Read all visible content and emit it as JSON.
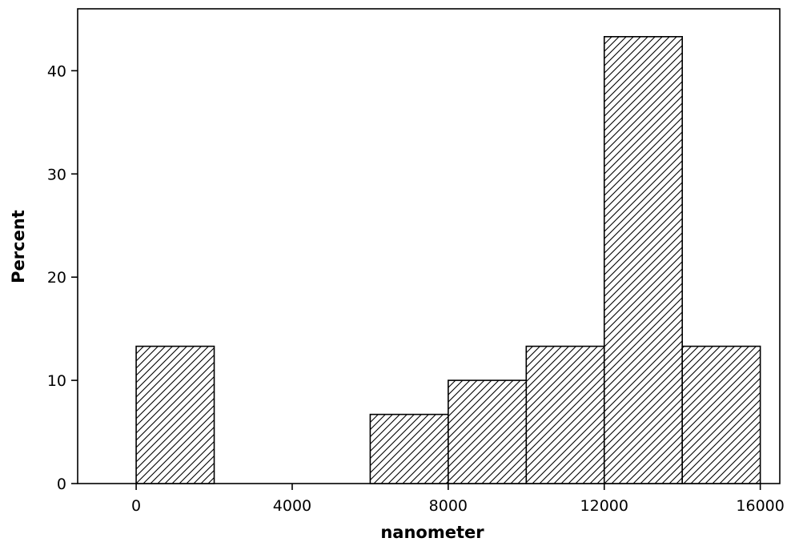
{
  "chart_data": {
    "type": "bar",
    "subtype": "histogram",
    "title": "",
    "xlabel": "nanometer",
    "ylabel": "Percent",
    "xlim": [
      -1500,
      16500
    ],
    "ylim": [
      0,
      46
    ],
    "x_ticks": [
      0,
      4000,
      8000,
      12000,
      16000
    ],
    "y_ticks": [
      0,
      10,
      20,
      30,
      40
    ],
    "bins": [
      {
        "start": 0,
        "end": 2000,
        "value": 13.3
      },
      {
        "start": 2000,
        "end": 4000,
        "value": 0
      },
      {
        "start": 4000,
        "end": 6000,
        "value": 0
      },
      {
        "start": 6000,
        "end": 8000,
        "value": 6.7
      },
      {
        "start": 8000,
        "end": 10000,
        "value": 10.0
      },
      {
        "start": 10000,
        "end": 12000,
        "value": 13.3
      },
      {
        "start": 12000,
        "end": 14000,
        "value": 43.3
      },
      {
        "start": 14000,
        "end": 16000,
        "value": 13.3
      }
    ],
    "fill": "diagonal-hatch",
    "bar_color": "#000000",
    "background": "#ffffff",
    "grid": false,
    "legend": "none"
  }
}
